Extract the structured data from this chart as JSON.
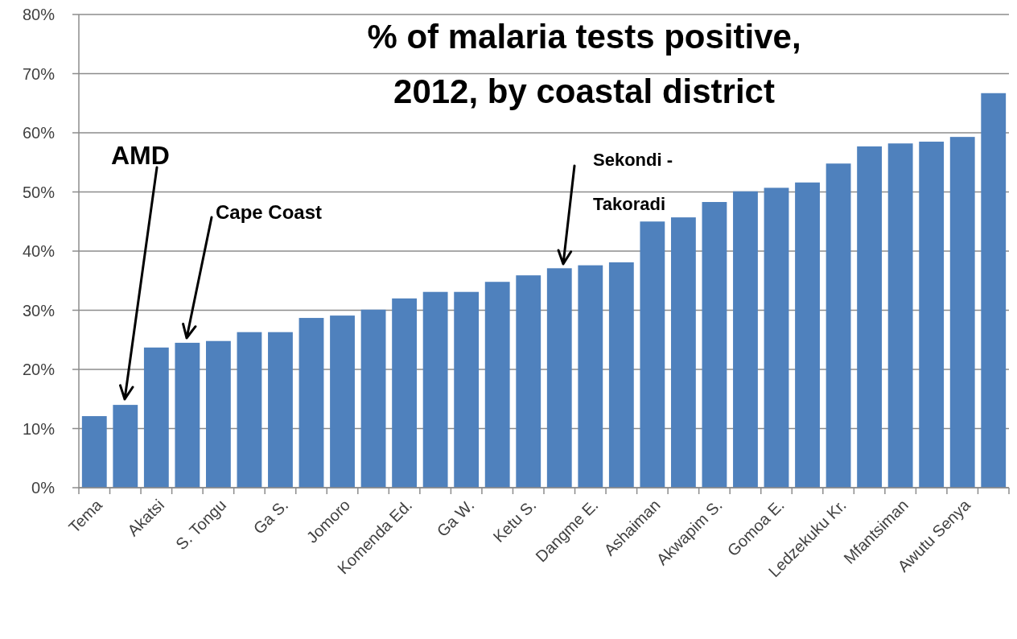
{
  "chart_data": {
    "type": "bar",
    "title": "% of malaria tests positive, 2012, by coastal district",
    "categories": [
      "Tema",
      null,
      "Akatsi",
      null,
      "S. Tongu",
      null,
      "Ga S.",
      null,
      "Jomoro",
      null,
      "Komenda Ed.",
      null,
      "Ga W.",
      null,
      "Ketu S.",
      null,
      "Dangme E.",
      null,
      "Ashaiman",
      null,
      "Akwapim S.",
      null,
      "Gomoa E.",
      null,
      "Ledzekuku Kr.",
      null,
      "Mfantsiman",
      null,
      "Awutu Senya",
      null
    ],
    "values": [
      12.1,
      14,
      23.7,
      24.5,
      24.8,
      26.3,
      26.3,
      28.7,
      29.1,
      30.1,
      32,
      33.1,
      33.1,
      34.8,
      35.9,
      37.1,
      37.6,
      38.1,
      45,
      45.7,
      48.3,
      50.1,
      50.7,
      51.6,
      54.8,
      57.7,
      58.2,
      58.5,
      59.3,
      66.7
    ],
    "color": "#4f81bd",
    "ylim": [
      0,
      80
    ],
    "yticks": [
      {
        "value": 0,
        "label": "0%"
      },
      {
        "value": 10,
        "label": "10%"
      },
      {
        "value": 20,
        "label": "20%"
      },
      {
        "value": 30,
        "label": "30%"
      },
      {
        "value": 40,
        "label": "40%"
      },
      {
        "value": 50,
        "label": "50%"
      },
      {
        "value": 60,
        "label": "60%"
      },
      {
        "value": 70,
        "label": "70%"
      },
      {
        "value": 80,
        "label": "80%"
      }
    ],
    "grid": "y",
    "annotations": [
      "AMD",
      "Cape Coast",
      "Sekondi - Takoradi"
    ]
  }
}
